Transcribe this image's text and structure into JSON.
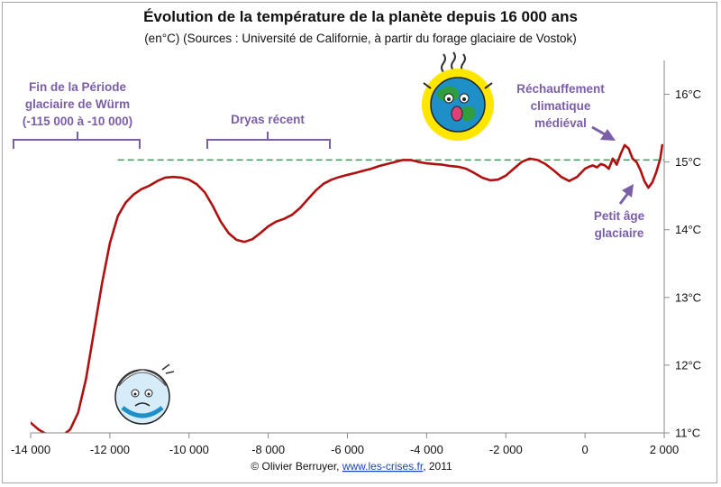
{
  "chart_data": {
    "type": "line",
    "title": "Évolution de la température de la planète depuis 16 000 ans",
    "subtitle": "(en°C) (Sources : Université de Californie, à partir du forage glaciaire de Vostok)",
    "xlabel": "",
    "ylabel": "",
    "xlim": [
      -14000,
      2000
    ],
    "ylim": [
      11,
      16.5
    ],
    "x_ticks": [
      {
        "value": -14000,
        "label": "-14 000"
      },
      {
        "value": -12000,
        "label": "-12 000"
      },
      {
        "value": -10000,
        "label": "-10 000"
      },
      {
        "value": -8000,
        "label": "-8 000"
      },
      {
        "value": -6000,
        "label": "-6 000"
      },
      {
        "value": -4000,
        "label": "-4 000"
      },
      {
        "value": -2000,
        "label": "-2 000"
      },
      {
        "value": 0,
        "label": "0"
      },
      {
        "value": 2000,
        "label": "2 000"
      }
    ],
    "y_ticks": [
      {
        "value": 11,
        "label": "11°C"
      },
      {
        "value": 12,
        "label": "12°C"
      },
      {
        "value": 13,
        "label": "13°C"
      },
      {
        "value": 14,
        "label": "14°C"
      },
      {
        "value": 15,
        "label": "15°C"
      },
      {
        "value": 16,
        "label": "16°C"
      }
    ],
    "y_axis_side": "right",
    "grid": false,
    "reference_line": {
      "y": 15.03,
      "x_from": -11800,
      "x_to": 2000,
      "color": "#2e9e5a",
      "style": "dashed"
    },
    "series": [
      {
        "color": "#b01010",
        "x": [
          -14000,
          -13800,
          -13600,
          -13400,
          -13200,
          -13000,
          -12800,
          -12600,
          -12400,
          -12200,
          -12000,
          -11800,
          -11600,
          -11400,
          -11200,
          -11000,
          -10800,
          -10600,
          -10400,
          -10200,
          -10000,
          -9800,
          -9600,
          -9400,
          -9200,
          -9000,
          -8800,
          -8600,
          -8400,
          -8200,
          -8000,
          -7800,
          -7600,
          -7400,
          -7200,
          -7000,
          -6800,
          -6600,
          -6400,
          -6200,
          -6000,
          -5800,
          -5600,
          -5400,
          -5200,
          -5000,
          -4800,
          -4600,
          -4400,
          -4200,
          -4000,
          -3800,
          -3600,
          -3400,
          -3200,
          -3000,
          -2800,
          -2600,
          -2400,
          -2200,
          -2000,
          -1800,
          -1600,
          -1400,
          -1200,
          -1000,
          -800,
          -600,
          -400,
          -200,
          0,
          100,
          200,
          300,
          400,
          500,
          600,
          700,
          800,
          900,
          1000,
          1100,
          1200,
          1300,
          1400,
          1500,
          1600,
          1700,
          1800,
          1900,
          1950
        ],
        "values": [
          11.15,
          11.05,
          10.98,
          10.95,
          10.96,
          11.05,
          11.3,
          11.8,
          12.5,
          13.2,
          13.8,
          14.2,
          14.4,
          14.52,
          14.6,
          14.65,
          14.72,
          14.77,
          14.78,
          14.77,
          14.74,
          14.67,
          14.55,
          14.35,
          14.12,
          13.95,
          13.85,
          13.82,
          13.86,
          13.95,
          14.05,
          14.12,
          14.16,
          14.22,
          14.32,
          14.45,
          14.58,
          14.68,
          14.74,
          14.78,
          14.81,
          14.84,
          14.87,
          14.9,
          14.94,
          14.97,
          15.0,
          15.03,
          15.03,
          15.0,
          14.98,
          14.97,
          14.96,
          14.94,
          14.93,
          14.9,
          14.84,
          14.77,
          14.73,
          14.74,
          14.8,
          14.9,
          15.0,
          15.05,
          15.03,
          14.97,
          14.88,
          14.78,
          14.72,
          14.78,
          14.9,
          14.93,
          14.95,
          14.92,
          14.97,
          14.95,
          14.9,
          15.05,
          14.96,
          15.12,
          15.25,
          15.2,
          15.05,
          15.0,
          14.88,
          14.72,
          14.62,
          14.7,
          14.85,
          15.05,
          15.25
        ]
      }
    ],
    "annotations": [
      {
        "name": "wurm",
        "lines": [
          "Fin de la Période",
          "glaciaire de Würm",
          "(-115 000 à -10 000)"
        ],
        "bracket": [
          -14000,
          -11200
        ]
      },
      {
        "name": "dryas",
        "lines": [
          "Dryas récent"
        ],
        "bracket": [
          -9500,
          -6300
        ]
      },
      {
        "name": "medieval",
        "lines": [
          "Réchauffement",
          "climatique",
          "médiéval"
        ]
      },
      {
        "name": "little-ice-age",
        "lines": [
          "Petit âge",
          "glaciaire"
        ]
      }
    ],
    "annotation_color": "#7a5ea8",
    "credit": {
      "text_before": "© Olivier Berruyer, ",
      "link": "www.les-crises.fr",
      "text_after": ",  2011"
    }
  }
}
